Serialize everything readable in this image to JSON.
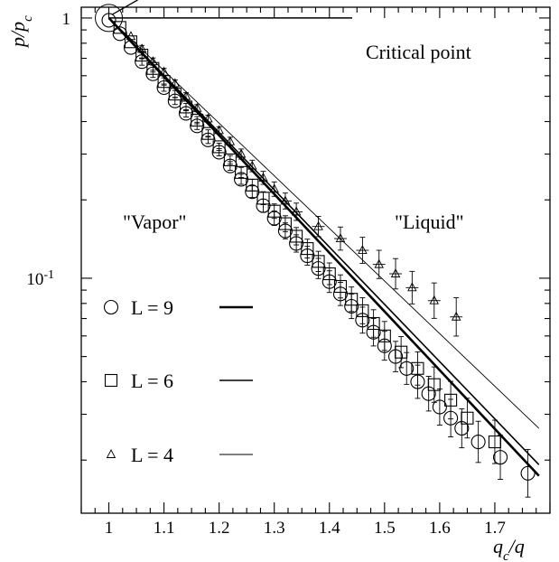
{
  "chart_data": {
    "type": "scatter",
    "title": "",
    "xlabel": "q_c/q",
    "ylabel": "p/p_c",
    "xlim": [
      0.95,
      1.8
    ],
    "ylim": [
      0.0125,
      1.1
    ],
    "y_scale": "log",
    "grid": false,
    "x_ticks": [
      1,
      1.1,
      1.2,
      1.3,
      1.4,
      1.5,
      1.6,
      1.7
    ],
    "x_tick_labels": [
      "1",
      "1.1",
      "1.2",
      "1.3",
      "1.4",
      "1.5",
      "1.6",
      "1.7"
    ],
    "y_tick_labels": [
      {
        "v": 1,
        "t": "1"
      },
      {
        "v": 0.1,
        "t": "10",
        "sup": "-1"
      }
    ],
    "annotations": {
      "critical_point": {
        "text": "Critical point",
        "x": 1.0,
        "y": 1.0
      },
      "vapor": "\"Vapor\"",
      "liquid": "\"Liquid\""
    },
    "legend_placement": "left",
    "series": [
      {
        "name": "L = 9",
        "marker": "circle",
        "line_weight": "thick",
        "fit": {
          "x": [
            1.0,
            1.78
          ],
          "y": [
            1.0,
            0.0174
          ]
        },
        "points": [
          {
            "x": 1.0,
            "y": 0.98
          },
          {
            "x": 1.02,
            "y": 0.87
          },
          {
            "x": 1.04,
            "y": 0.77
          },
          {
            "x": 1.06,
            "y": 0.68
          },
          {
            "x": 1.08,
            "y": 0.61
          },
          {
            "x": 1.1,
            "y": 0.54
          },
          {
            "x": 1.12,
            "y": 0.48
          },
          {
            "x": 1.14,
            "y": 0.43
          },
          {
            "x": 1.16,
            "y": 0.385
          },
          {
            "x": 1.18,
            "y": 0.34
          },
          {
            "x": 1.2,
            "y": 0.305
          },
          {
            "x": 1.22,
            "y": 0.27
          },
          {
            "x": 1.24,
            "y": 0.24
          },
          {
            "x": 1.26,
            "y": 0.215
          },
          {
            "x": 1.28,
            "y": 0.19
          },
          {
            "x": 1.3,
            "y": 0.17
          },
          {
            "x": 1.32,
            "y": 0.152
          },
          {
            "x": 1.34,
            "y": 0.136
          },
          {
            "x": 1.36,
            "y": 0.122
          },
          {
            "x": 1.38,
            "y": 0.109
          },
          {
            "x": 1.4,
            "y": 0.097
          },
          {
            "x": 1.42,
            "y": 0.087
          },
          {
            "x": 1.44,
            "y": 0.078
          },
          {
            "x": 1.46,
            "y": 0.069
          },
          {
            "x": 1.48,
            "y": 0.062
          },
          {
            "x": 1.5,
            "y": 0.055
          },
          {
            "x": 1.52,
            "y": 0.05
          },
          {
            "x": 1.54,
            "y": 0.045
          },
          {
            "x": 1.56,
            "y": 0.04
          },
          {
            "x": 1.58,
            "y": 0.036
          },
          {
            "x": 1.6,
            "y": 0.032
          },
          {
            "x": 1.62,
            "y": 0.029
          },
          {
            "x": 1.64,
            "y": 0.0265
          },
          {
            "x": 1.67,
            "y": 0.0235
          },
          {
            "x": 1.71,
            "y": 0.0205
          },
          {
            "x": 1.76,
            "y": 0.0178
          }
        ]
      },
      {
        "name": "L = 6",
        "marker": "square",
        "line_weight": "medium",
        "fit": {
          "x": [
            1.0,
            1.78
          ],
          "y": [
            1.0,
            0.0192
          ]
        },
        "points": [
          {
            "x": 1.02,
            "y": 0.92
          },
          {
            "x": 1.04,
            "y": 0.81
          },
          {
            "x": 1.06,
            "y": 0.72
          },
          {
            "x": 1.08,
            "y": 0.64
          },
          {
            "x": 1.1,
            "y": 0.57
          },
          {
            "x": 1.12,
            "y": 0.51
          },
          {
            "x": 1.14,
            "y": 0.455
          },
          {
            "x": 1.16,
            "y": 0.405
          },
          {
            "x": 1.18,
            "y": 0.36
          },
          {
            "x": 1.2,
            "y": 0.32
          },
          {
            "x": 1.22,
            "y": 0.285
          },
          {
            "x": 1.24,
            "y": 0.255
          },
          {
            "x": 1.26,
            "y": 0.228
          },
          {
            "x": 1.28,
            "y": 0.203
          },
          {
            "x": 1.3,
            "y": 0.181
          },
          {
            "x": 1.32,
            "y": 0.162
          },
          {
            "x": 1.34,
            "y": 0.145
          },
          {
            "x": 1.36,
            "y": 0.13
          },
          {
            "x": 1.38,
            "y": 0.116
          },
          {
            "x": 1.4,
            "y": 0.104
          },
          {
            "x": 1.42,
            "y": 0.093
          },
          {
            "x": 1.44,
            "y": 0.083
          },
          {
            "x": 1.46,
            "y": 0.075
          },
          {
            "x": 1.48,
            "y": 0.067
          },
          {
            "x": 1.5,
            "y": 0.06
          },
          {
            "x": 1.53,
            "y": 0.052
          },
          {
            "x": 1.56,
            "y": 0.045
          },
          {
            "x": 1.59,
            "y": 0.039
          },
          {
            "x": 1.62,
            "y": 0.034
          },
          {
            "x": 1.65,
            "y": 0.029
          },
          {
            "x": 1.7,
            "y": 0.0235
          }
        ]
      },
      {
        "name": "L = 4",
        "marker": "triangle",
        "line_weight": "thin",
        "fit": {
          "x": [
            1.0,
            1.78
          ],
          "y": [
            1.0,
            0.0265
          ]
        },
        "points": [
          {
            "x": 1.04,
            "y": 0.85
          },
          {
            "x": 1.06,
            "y": 0.76
          },
          {
            "x": 1.08,
            "y": 0.68
          },
          {
            "x": 1.1,
            "y": 0.62
          },
          {
            "x": 1.12,
            "y": 0.56
          },
          {
            "x": 1.14,
            "y": 0.5
          },
          {
            "x": 1.16,
            "y": 0.45
          },
          {
            "x": 1.18,
            "y": 0.41
          },
          {
            "x": 1.2,
            "y": 0.37
          },
          {
            "x": 1.22,
            "y": 0.335
          },
          {
            "x": 1.24,
            "y": 0.3
          },
          {
            "x": 1.26,
            "y": 0.27
          },
          {
            "x": 1.28,
            "y": 0.243
          },
          {
            "x": 1.3,
            "y": 0.22
          },
          {
            "x": 1.32,
            "y": 0.198
          },
          {
            "x": 1.34,
            "y": 0.18
          },
          {
            "x": 1.38,
            "y": 0.158
          },
          {
            "x": 1.42,
            "y": 0.142
          },
          {
            "x": 1.46,
            "y": 0.128
          },
          {
            "x": 1.49,
            "y": 0.113
          },
          {
            "x": 1.52,
            "y": 0.104
          },
          {
            "x": 1.55,
            "y": 0.092
          },
          {
            "x": 1.59,
            "y": 0.082
          },
          {
            "x": 1.63,
            "y": 0.071
          }
        ]
      }
    ]
  }
}
